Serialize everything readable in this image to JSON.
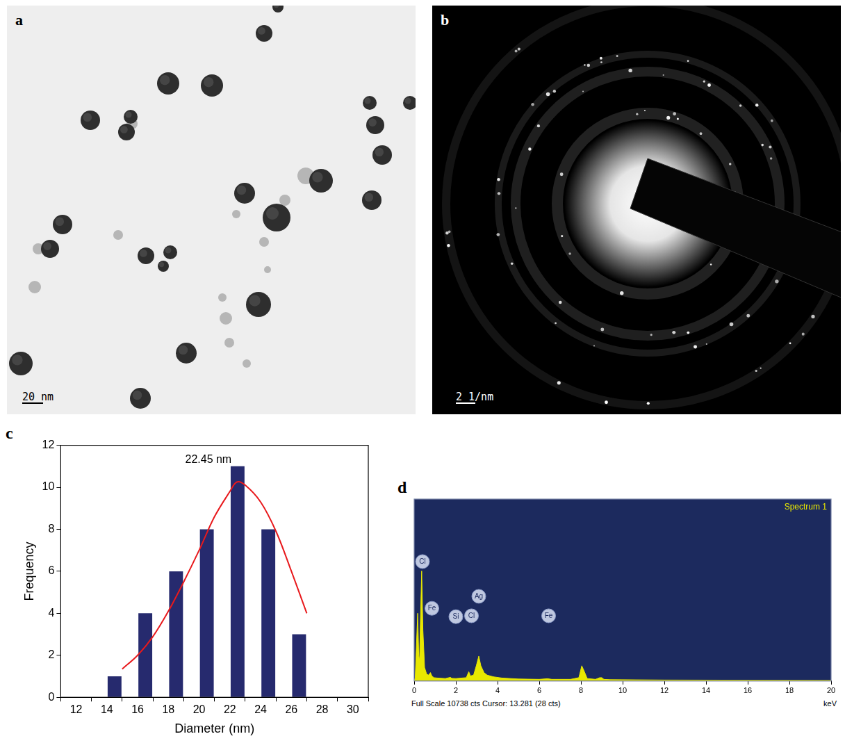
{
  "chart_data": [
    {
      "panel": "c",
      "type": "histogram",
      "bins": [
        14,
        16,
        18,
        20,
        22,
        24,
        26,
        28
      ],
      "values": [
        1,
        4,
        6,
        8,
        11,
        8,
        3
      ],
      "color": "#262a6e",
      "fit": {
        "color": "#e8191c",
        "x": [
          15,
          16,
          17,
          18,
          19,
          20,
          21,
          22,
          22.45,
          23,
          24,
          25,
          26,
          27
        ],
        "values": [
          1.35,
          2.0,
          2.9,
          4.1,
          5.5,
          7.0,
          8.6,
          9.8,
          10.25,
          10.1,
          9.3,
          7.9,
          6.0,
          4.0
        ]
      },
      "annotations": [
        {
          "text": "22.45 nm",
          "x": 20.6,
          "y": 11.3
        }
      ],
      "xlabel": "Diameter (nm)",
      "ylabel": "Frequency",
      "xlim": [
        12,
        30
      ],
      "xticks": [
        12,
        14,
        16,
        18,
        20,
        22,
        24,
        26,
        28,
        30
      ],
      "ylim": [
        0,
        12
      ],
      "yticks": [
        0,
        2,
        4,
        6,
        8,
        10,
        12
      ],
      "grid": false
    },
    {
      "panel": "d",
      "type": "line",
      "title": "Spectrum 1",
      "x": [
        0,
        0.05,
        0.1,
        0.17,
        0.22,
        0.26,
        0.3,
        0.36,
        0.42,
        0.5,
        0.6,
        0.7,
        0.78,
        0.85,
        0.95,
        1.1,
        1.5,
        1.74,
        1.8,
        2.0,
        2.5,
        2.62,
        2.7,
        2.85,
        2.98,
        3.1,
        3.2,
        3.35,
        3.5,
        3.8,
        4.2,
        5,
        6,
        6.4,
        6.6,
        7.5,
        7.9,
        8.04,
        8.15,
        8.3,
        8.7,
        8.9,
        9.0,
        9.1,
        9.4,
        12,
        20
      ],
      "values": [
        0,
        200,
        1800,
        4000,
        1500,
        1200,
        3500,
        6500,
        3000,
        800,
        400,
        350,
        500,
        300,
        200,
        180,
        150,
        220,
        160,
        150,
        200,
        550,
        300,
        350,
        900,
        1470,
        900,
        500,
        350,
        250,
        180,
        120,
        100,
        140,
        100,
        100,
        200,
        900,
        600,
        150,
        100,
        200,
        200,
        100,
        80,
        60,
        40
      ],
      "color": "#e8e800",
      "peak_labels": [
        {
          "text": "Cl",
          "x": 0.4,
          "y": 7050
        },
        {
          "text": "Fe",
          "x": 0.85,
          "y": 4290
        },
        {
          "text": "Si",
          "x": 2.0,
          "y": 3800
        },
        {
          "text": "Cl",
          "x": 2.75,
          "y": 3850
        },
        {
          "text": "Ag",
          "x": 3.1,
          "y": 5000
        },
        {
          "text": "Fe",
          "x": 6.45,
          "y": 3850
        }
      ],
      "xlabel": "keV",
      "footer": "Full Scale 10738 cts Cursor: 13.281  (28 cts)",
      "xlim": [
        0,
        20
      ],
      "xticks": [
        0,
        2,
        4,
        6,
        8,
        10,
        12,
        14,
        16,
        18,
        20
      ],
      "ylim": [
        0,
        10738
      ],
      "tick_labels": "x",
      "grid": false
    }
  ],
  "images": [
    {
      "panel": "a",
      "type": "micrograph",
      "scale_bar": "20 nm"
    },
    {
      "panel": "b",
      "type": "diffraction_pattern",
      "scale_bar": "2 1/nm"
    }
  ]
}
